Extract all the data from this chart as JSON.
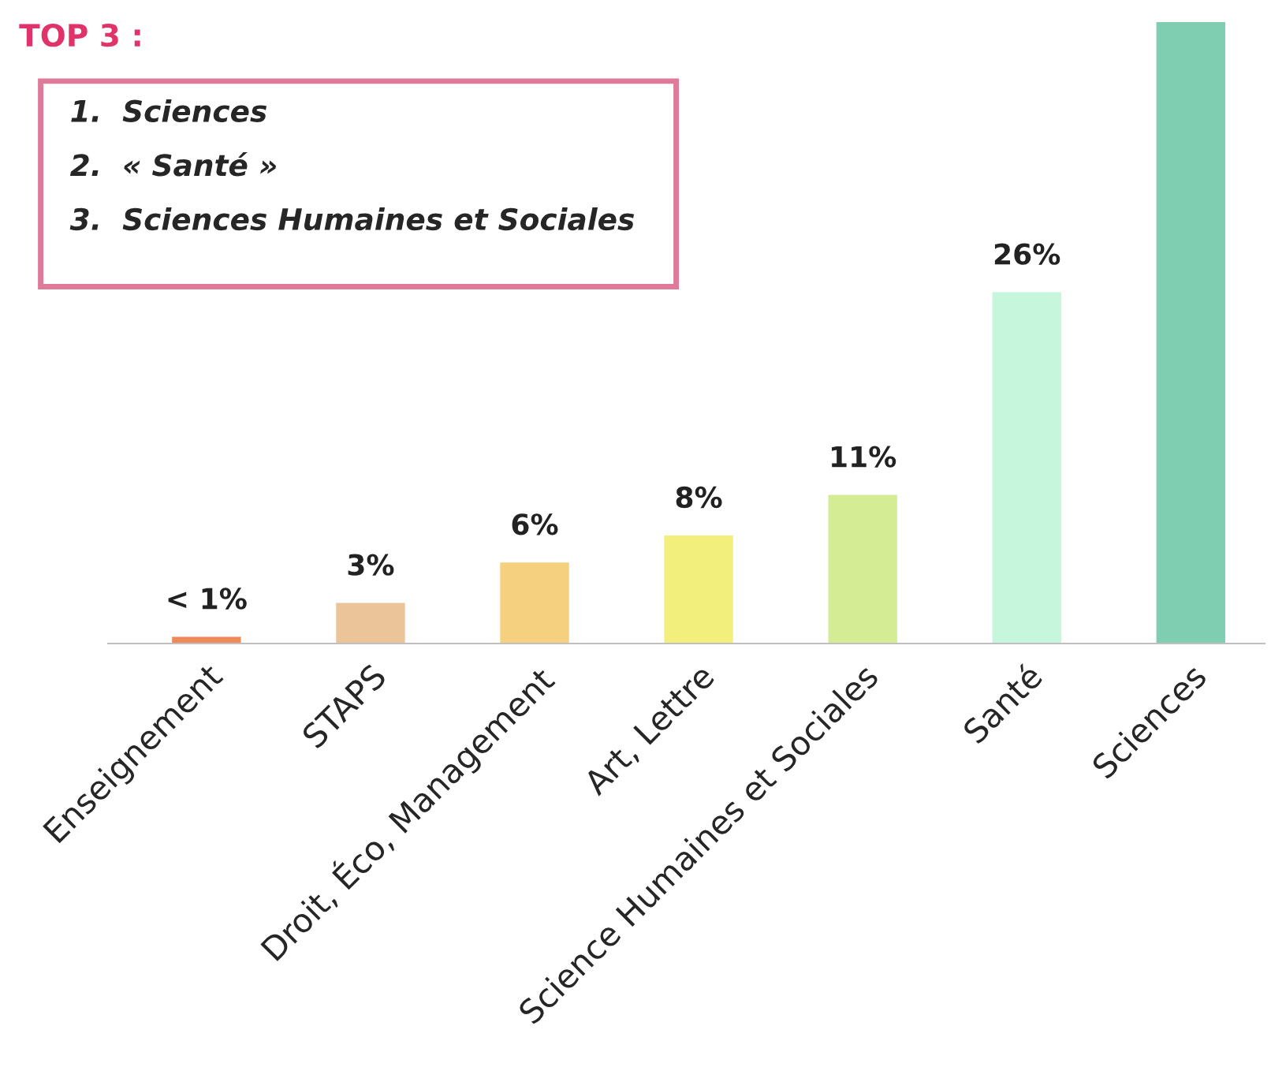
{
  "chart_data": {
    "type": "bar",
    "title": "TOP 3 :",
    "annotations": [
      "1.  Sciences",
      "2.  « Santé »",
      "3.  Sciences Humaines et Sociales"
    ],
    "categories": [
      "Enseignement",
      "STAPS",
      "Droit, Éco, Management",
      "Art, Lettre",
      "Science Humaines et Sociales",
      "Santé",
      "Sciences"
    ],
    "values": [
      0.5,
      3,
      6,
      8,
      11,
      26,
      46
    ],
    "value_labels": [
      "< 1%",
      "3%",
      "6%",
      "8%",
      "11%",
      "26%",
      null
    ],
    "colors": [
      "#ee8a5a",
      "#ecc49a",
      "#f4d07f",
      "#f2ef7c",
      "#d4ec94",
      "#c6f6dc",
      "#80ceb2"
    ],
    "grid": false,
    "legend": false
  }
}
